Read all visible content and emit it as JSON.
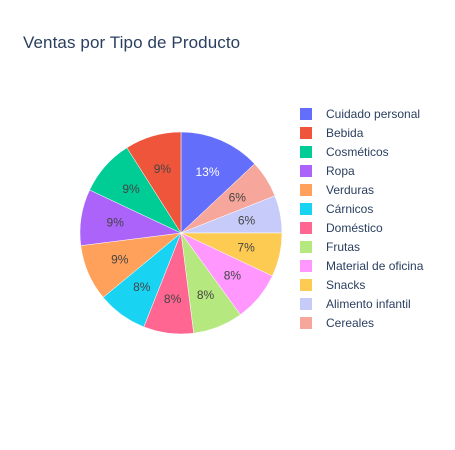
{
  "chart_data": {
    "type": "pie",
    "title": "Ventas por Tipo de Producto",
    "legend_position": "right",
    "slices": [
      {
        "label": "Cuidado personal",
        "value": 13,
        "text": "13%",
        "color": "#636efa",
        "text_color": "#ffffff"
      },
      {
        "label": "Cereales",
        "value": 6,
        "text": "6%",
        "color": "#f6a69a",
        "text_color": "#444444"
      },
      {
        "label": "Alimento infantil",
        "value": 6,
        "text": "6%",
        "color": "#c6cbf9",
        "text_color": "#444444"
      },
      {
        "label": "Snacks",
        "value": 7,
        "text": "7%",
        "color": "#fecb52",
        "text_color": "#444444"
      },
      {
        "label": "Material de oficina",
        "value": 8,
        "text": "8%",
        "color": "#ff97ff",
        "text_color": "#444444"
      },
      {
        "label": "Frutas",
        "value": 8,
        "text": "8%",
        "color": "#b6e880",
        "text_color": "#444444"
      },
      {
        "label": "Doméstico",
        "value": 8,
        "text": "8%",
        "color": "#ff6692",
        "text_color": "#444444"
      },
      {
        "label": "Cárnicos",
        "value": 8,
        "text": "8%",
        "color": "#19d3f3",
        "text_color": "#444444"
      },
      {
        "label": "Verduras",
        "value": 9,
        "text": "9%",
        "color": "#ffa15a",
        "text_color": "#444444"
      },
      {
        "label": "Ropa",
        "value": 9,
        "text": "9%",
        "color": "#ab63fa",
        "text_color": "#444444"
      },
      {
        "label": "Cosméticos",
        "value": 9,
        "text": "9%",
        "color": "#00cc96",
        "text_color": "#444444"
      },
      {
        "label": "Bebida",
        "value": 9,
        "text": "9%",
        "color": "#ef553b",
        "text_color": "#444444"
      }
    ],
    "legend_order": [
      "Cuidado personal",
      "Bebida",
      "Cosméticos",
      "Ropa",
      "Verduras",
      "Cárnicos",
      "Doméstico",
      "Frutas",
      "Material de oficina",
      "Snacks",
      "Alimento infantil",
      "Cereales"
    ]
  }
}
